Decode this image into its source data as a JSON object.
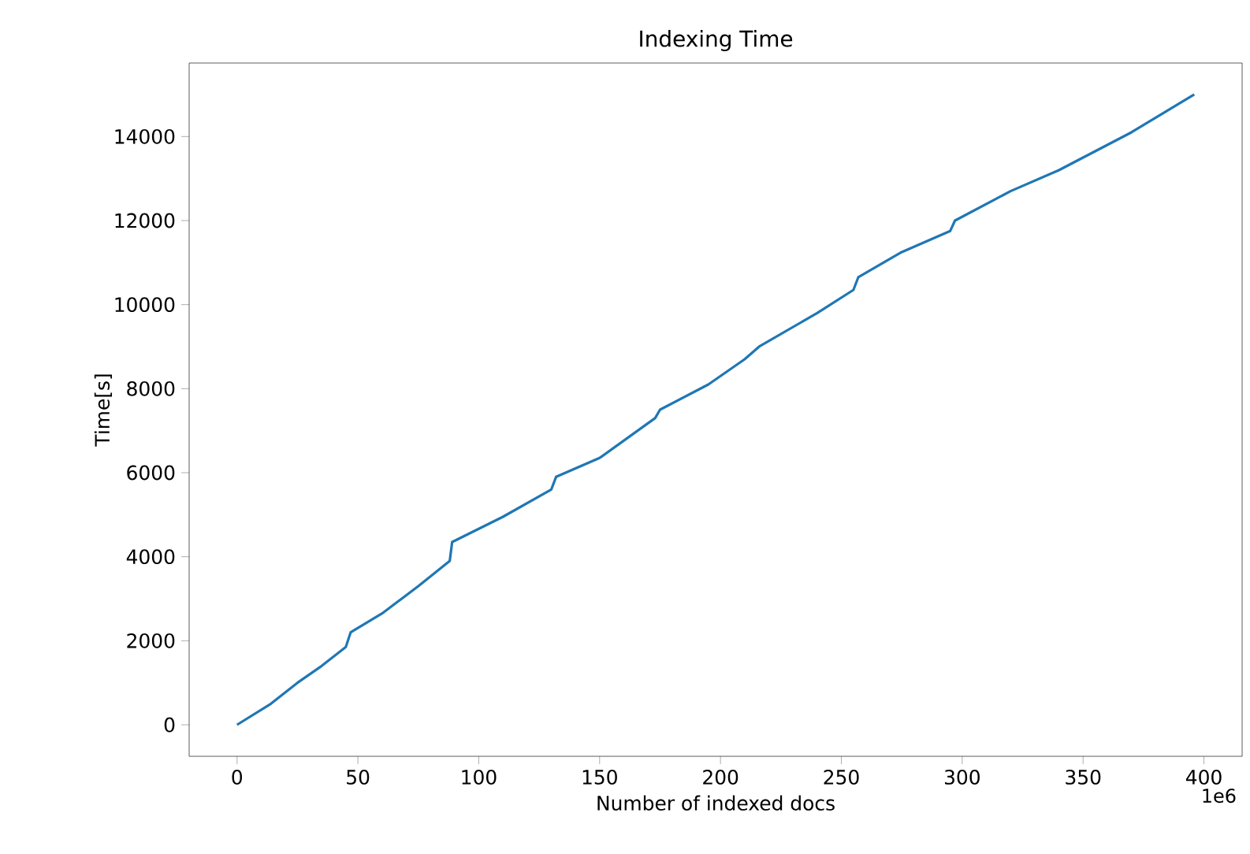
{
  "chart_data": {
    "type": "line",
    "title": "Indexing Time",
    "xlabel": "Number of indexed docs",
    "ylabel": "Time[s]",
    "annotations": [
      "1e6"
    ],
    "x": [
      0,
      14,
      25,
      35,
      45,
      47,
      60,
      75,
      88,
      89,
      110,
      130,
      132,
      150,
      173,
      175,
      195,
      210,
      216,
      240,
      255,
      257,
      275,
      295,
      297,
      320,
      340,
      370,
      396
    ],
    "series": [
      {
        "color": "#1f77b4",
        "values": [
          0,
          500,
          1000,
          1400,
          1850,
          2200,
          2650,
          3300,
          3900,
          4350,
          4950,
          5600,
          5900,
          6350,
          7300,
          7500,
          8100,
          8700,
          9000,
          9800,
          10350,
          10650,
          11250,
          11750,
          12000,
          12700,
          13200,
          14100,
          15000
        ]
      }
    ],
    "xlim": [
      -19.8,
      415.8
    ],
    "ylim": [
      -750,
      15750
    ],
    "xticks": [
      0,
      50,
      100,
      150,
      200,
      250,
      300,
      350,
      400
    ],
    "yticks": [
      0,
      2000,
      4000,
      6000,
      8000,
      10000,
      12000,
      14000
    ],
    "grid": false,
    "marker": "none",
    "line_style": "solid"
  }
}
